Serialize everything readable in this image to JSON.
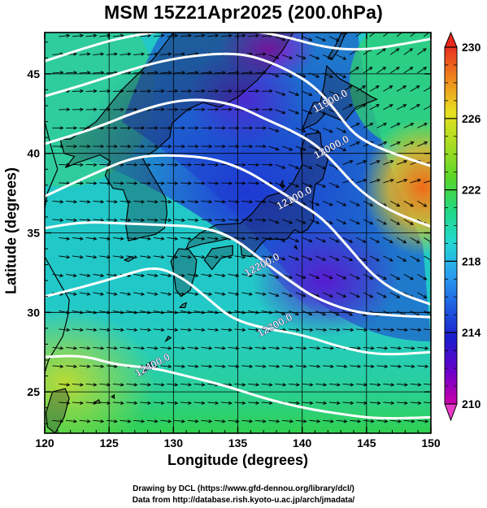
{
  "title": "MSM 15Z21Apr2025 (200.0hPa)",
  "map": {
    "xlabel": "Longitude (degrees)",
    "ylabel": "Latitude  (degrees)",
    "xticks": [
      120,
      125,
      130,
      135,
      140,
      145,
      150
    ],
    "yticks": [
      25,
      30,
      35,
      40,
      45
    ],
    "xlim": [
      120,
      150
    ],
    "ylim": [
      22.4,
      47.6
    ],
    "contours": [
      {
        "label": "11900.0",
        "lon": 142.3,
        "lat": 43.1
      },
      {
        "label": "12000.0",
        "lon": 142.4,
        "lat": 40.2
      },
      {
        "label": "12100.0",
        "lon": 139.5,
        "lat": 37.0
      },
      {
        "label": "12200.0",
        "lon": 137.0,
        "lat": 32.8
      },
      {
        "label": "12300.0",
        "lon": 138.0,
        "lat": 29.0
      },
      {
        "label": "12400.0",
        "lon": 128.5,
        "lat": 26.5
      }
    ]
  },
  "colorbar": {
    "ticks": [
      210,
      214,
      218,
      222,
      226,
      230
    ],
    "min": 210,
    "max": 230,
    "colors": [
      "#cc00aa",
      "#6a00cc",
      "#1c1ccc",
      "#1e5ee0",
      "#2aa0f0",
      "#22d8d0",
      "#22d880",
      "#5cd628",
      "#a8dd22",
      "#e8e020",
      "#ee8a1c",
      "#e83020"
    ]
  },
  "credits": {
    "line1": "Drawing by DCL (https://www.gfd-dennou.org/library/dcl/)",
    "line2": "Data from http://database.rish.kyoto-u.ac.jp/arch/jmadata/"
  }
}
